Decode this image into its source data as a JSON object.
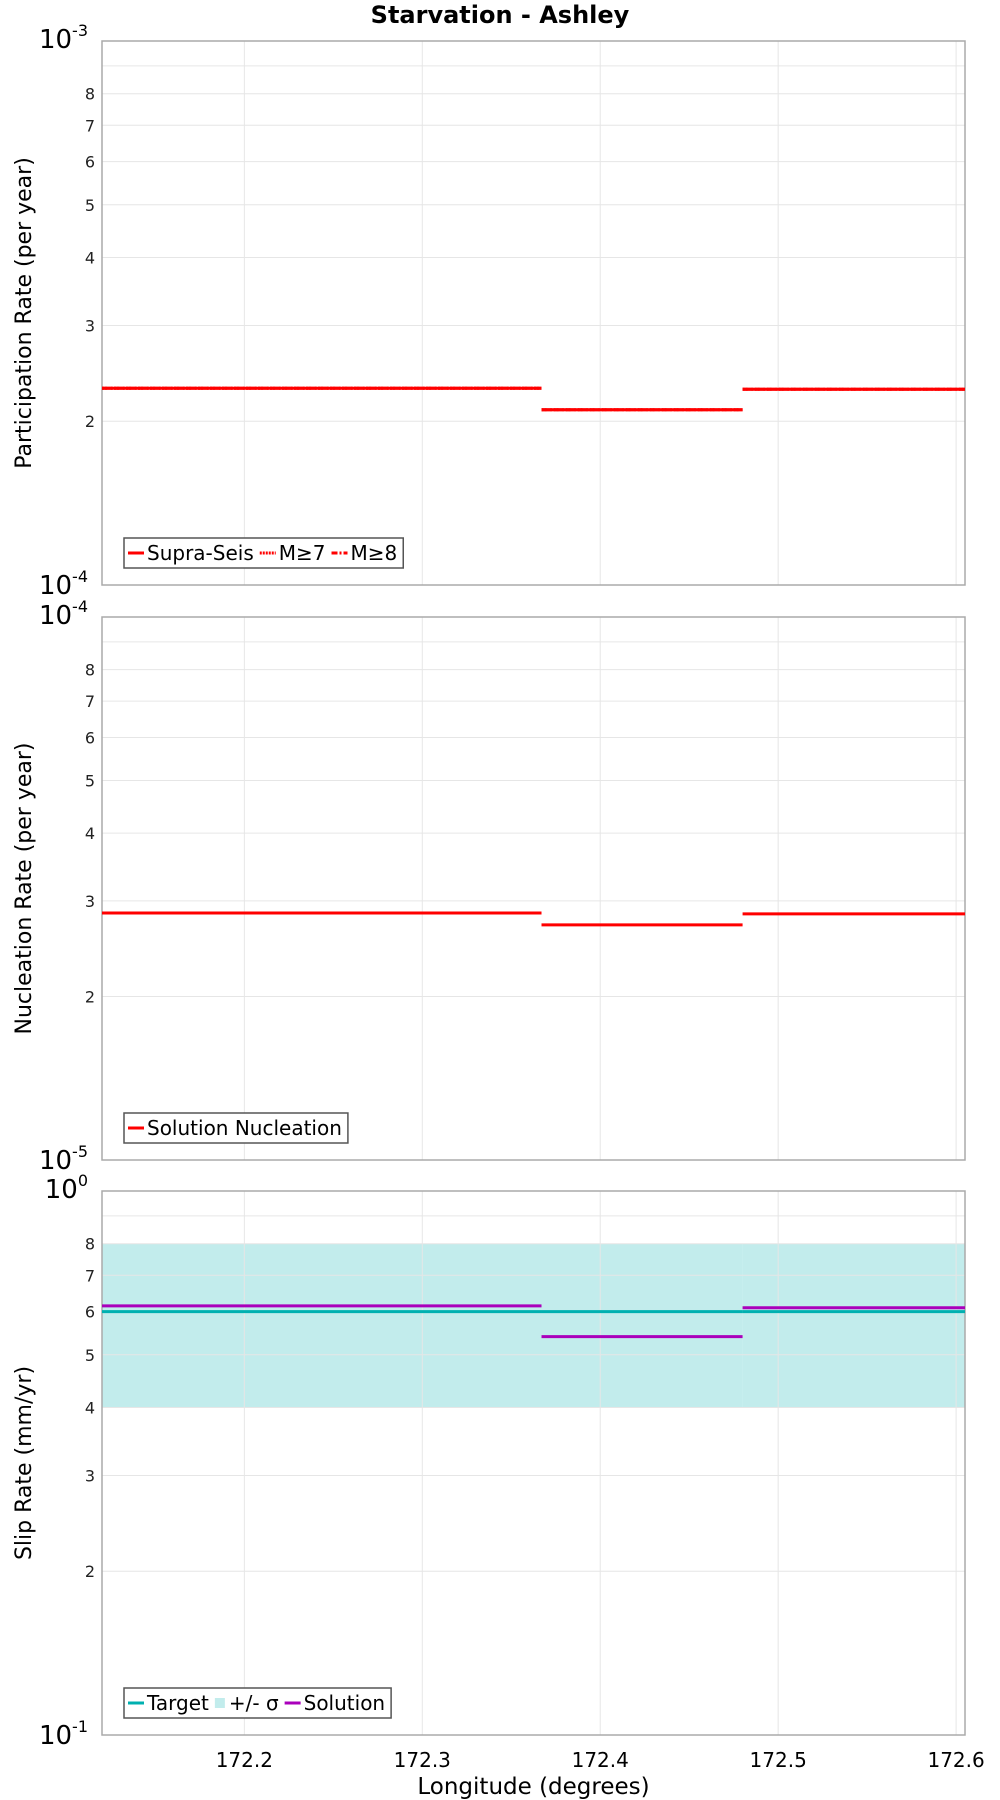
{
  "title": "Starvation - Ashley",
  "xlabel": "Longitude (degrees)",
  "x_ticks": [
    "172.2",
    "172.3",
    "172.4",
    "172.5",
    "172.6"
  ],
  "panels": [
    {
      "ylabel": "Participation Rate (per year)",
      "top_decade": {
        "base": "10",
        "exp": "-3"
      },
      "bottom_decade": {
        "base": "10",
        "exp": "-4"
      },
      "minor_ticks": [
        "8",
        "7",
        "6",
        "5",
        "4",
        "3",
        "2"
      ],
      "legend": [
        {
          "label": "Supra-Seis",
          "style": "solid",
          "color": "#ff0000"
        },
        {
          "label": "M≥7",
          "style": "dotted",
          "color": "#ff0000"
        },
        {
          "label": "M≥8",
          "style": "dashdot",
          "color": "#ff0000"
        }
      ]
    },
    {
      "ylabel": "Nucleation Rate (per year)",
      "top_decade": {
        "base": "10",
        "exp": "-4"
      },
      "bottom_decade": {
        "base": "10",
        "exp": "-5"
      },
      "minor_ticks": [
        "8",
        "7",
        "6",
        "5",
        "4",
        "3",
        "2"
      ],
      "legend": [
        {
          "label": "Solution Nucleation",
          "style": "solid",
          "color": "#ff0000"
        }
      ]
    },
    {
      "ylabel": "Slip Rate (mm/yr)",
      "top_decade": {
        "base": "10",
        "exp": "0"
      },
      "bottom_decade": {
        "base": "10",
        "exp": "-1"
      },
      "minor_ticks": [
        "8",
        "7",
        "6",
        "5",
        "4",
        "3",
        "2"
      ],
      "legend": [
        {
          "label": "Target",
          "style": "solid",
          "color": "#00b0b0"
        },
        {
          "label": "+/- σ",
          "style": "band",
          "color": "#c2ecec"
        },
        {
          "label": "Solution",
          "style": "solid",
          "color": "#aa00bb"
        }
      ]
    }
  ],
  "chart_data": [
    {
      "type": "line",
      "title": "Starvation - Ashley",
      "xlabel": "Longitude (degrees)",
      "ylabel": "Participation Rate (per year)",
      "yscale": "log",
      "ylim": [
        0.0001,
        0.001
      ],
      "xlim": [
        172.12,
        172.605
      ],
      "grid": true,
      "legend_position": "lower left",
      "segments_x": [
        [
          172.12,
          172.367
        ],
        [
          172.367,
          172.48
        ],
        [
          172.48,
          172.605
        ]
      ],
      "series": [
        {
          "name": "Supra-Seis",
          "values": [
            0.00023,
            0.00021,
            0.000229
          ]
        },
        {
          "name": "M≥7",
          "values": [
            0.00023,
            0.00021,
            0.000229
          ]
        },
        {
          "name": "M≥8",
          "values": [
            0.00023,
            0.00021,
            0.000229
          ]
        }
      ]
    },
    {
      "type": "line",
      "xlabel": "Longitude (degrees)",
      "ylabel": "Nucleation Rate (per year)",
      "yscale": "log",
      "ylim": [
        1e-05,
        0.0001
      ],
      "xlim": [
        172.12,
        172.605
      ],
      "grid": true,
      "legend_position": "lower left",
      "segments_x": [
        [
          172.12,
          172.367
        ],
        [
          172.367,
          172.48
        ],
        [
          172.48,
          172.605
        ]
      ],
      "series": [
        {
          "name": "Solution Nucleation",
          "values": [
            2.85e-05,
            2.71e-05,
            2.84e-05
          ]
        }
      ]
    },
    {
      "type": "line",
      "xlabel": "Longitude (degrees)",
      "ylabel": "Slip Rate (mm/yr)",
      "yscale": "log",
      "ylim": [
        0.1,
        1.0
      ],
      "xlim": [
        172.12,
        172.605
      ],
      "grid": true,
      "legend_position": "lower left",
      "segments_x": [
        [
          172.12,
          172.367
        ],
        [
          172.367,
          172.48
        ],
        [
          172.48,
          172.605
        ]
      ],
      "series": [
        {
          "name": "Target",
          "values": [
            0.6,
            0.6,
            0.6
          ]
        },
        {
          "name": "+/- σ",
          "lower": [
            0.4,
            0.4,
            0.4
          ],
          "upper": [
            0.8,
            0.8,
            0.8
          ]
        },
        {
          "name": "Solution",
          "values": [
            0.615,
            0.54,
            0.61
          ]
        }
      ]
    }
  ]
}
